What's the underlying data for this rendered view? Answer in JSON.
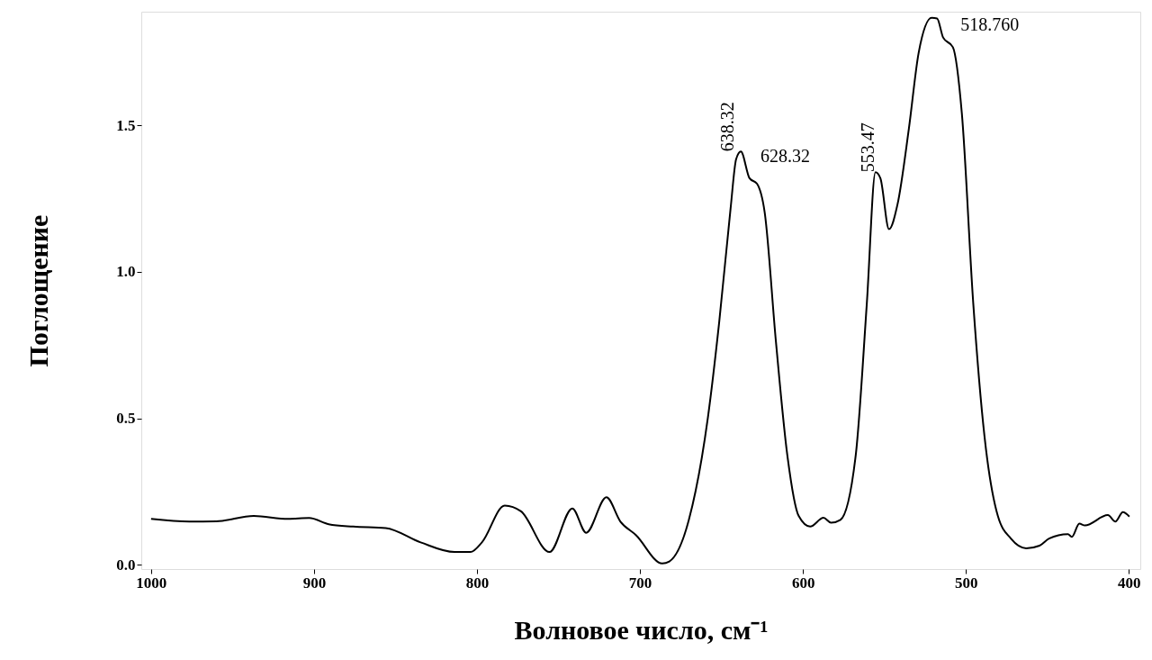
{
  "chart_data": {
    "type": "line",
    "xlabel": "Волновое число, см⁻¹",
    "ylabel": "Поглощение",
    "xlim": [
      1006,
      393
    ],
    "xticks": [
      1000,
      900,
      800,
      700,
      600,
      500,
      400
    ],
    "ylim": [
      -0.014,
      1.888
    ],
    "yticks": [
      {
        "value": 0,
        "label": "0.0"
      },
      {
        "value": 0.5,
        "label": "0.5"
      },
      {
        "value": 1,
        "label": "1.0"
      },
      {
        "value": 1.5,
        "label": "1.5"
      }
    ],
    "grid": false,
    "marker": "none",
    "line_style": "solid",
    "series": [
      {
        "color": "#000000",
        "x": [
          1000,
          976.5,
          960,
          937,
          916,
          903,
          891,
          876,
          856,
          834.6,
          813.8,
          804,
          797,
          783,
          773,
          755.5,
          741.5,
          733,
          720.6,
          712,
          702.5,
          686.3,
          682,
          670,
          658.3,
          651.4,
          644.4,
          641,
          638.1,
          632.8,
          628.2,
          623.5,
          616.6,
          609.6,
          602.6,
          595.6,
          587.4,
          582.8,
          577,
          567.6,
          560.8,
          555.5,
          552.5,
          547.2,
          542,
          535,
          529,
          521,
          517.7,
          514,
          508,
          502.5,
          495.5,
          488.6,
          480.4,
          472.4,
          463,
          454.8,
          449,
          437.4,
          435,
          430.4,
          427,
          412.9,
          408.3,
          403.7,
          399.7
        ],
        "values": [
          0.157,
          0.148,
          0.149,
          0.167,
          0.157,
          0.16,
          0.139,
          0.131,
          0.126,
          0.077,
          0.044,
          0.044,
          0.077,
          0.203,
          0.183,
          0.044,
          0.193,
          0.11,
          0.231,
          0.148,
          0.102,
          0.005,
          0.012,
          0.154,
          0.504,
          0.828,
          1.217,
          1.385,
          1.411,
          1.32,
          1.301,
          1.204,
          0.763,
          0.375,
          0.167,
          0.131,
          0.161,
          0.144,
          0.154,
          0.375,
          0.893,
          1.34,
          1.32,
          1.146,
          1.23,
          1.489,
          1.748,
          1.867,
          1.865,
          1.8,
          1.767,
          1.541,
          0.893,
          0.439,
          0.167,
          0.09,
          0.057,
          0.066,
          0.09,
          0.105,
          0.096,
          0.141,
          0.135,
          0.17,
          0.148,
          0.18,
          0.165
        ]
      }
    ],
    "annotations": [
      {
        "text": "638.32",
        "x": 638.1,
        "y": 1.411
      },
      {
        "text": "628.32",
        "x": 628.2,
        "y": 1.301
      },
      {
        "text": "553.47",
        "x": 555.5,
        "y": 1.34
      },
      {
        "text": "518.760",
        "x": 517.7,
        "y": 1.865
      }
    ]
  }
}
